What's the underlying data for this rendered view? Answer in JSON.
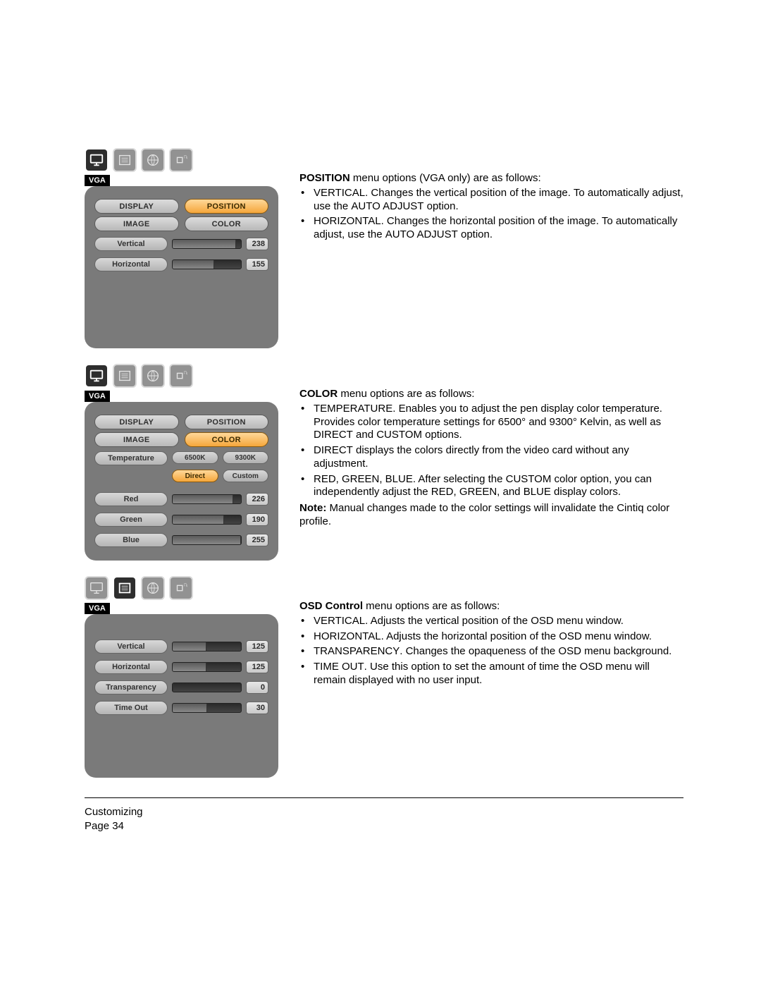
{
  "badge": "VGA",
  "position_section": {
    "intro_strong": "POSITION",
    "intro_rest": " menu options (VGA only) are as follows:",
    "bullets": [
      {
        "lead": "VERTICAL",
        "body": ".  Changes the vertical position of the image. To automatically adjust, use the ",
        "tail_sc": "AUTO ADJUST",
        "tail": " option."
      },
      {
        "lead": "HORIZONTAL",
        "body": ".  Changes the horizontal position of the image. To automatically adjust, use the ",
        "tail_sc": "AUTO ADJUST",
        "tail": " option."
      }
    ],
    "panel": {
      "tabs_top": [
        {
          "label": "DISPLAY",
          "active": false
        },
        {
          "label": "POSITION",
          "active": true
        }
      ],
      "tabs_bot": [
        {
          "label": "IMAGE",
          "active": false
        },
        {
          "label": "COLOR",
          "active": false
        }
      ],
      "sliders": [
        {
          "label": "Vertical",
          "value": 238,
          "max": 255,
          "fill_pct": 93
        },
        {
          "label": "Horizontal",
          "value": 155,
          "max": 255,
          "fill_pct": 61
        }
      ]
    }
  },
  "color_section": {
    "intro_strong": "COLOR",
    "intro_rest": " menu options are as follows:",
    "bullets": [
      {
        "lead": "TEMPERATURE",
        "body": ".  Enables you to adjust the pen display color temperature. Provides color temperature settings for 6500° and 9300° Kelvin, as well as ",
        "tail_sc": "DIRECT",
        "mid": " and ",
        "tail_sc2": "CUSTOM",
        "tail": " options."
      },
      {
        "lead": "DIRECT",
        "body": " displays the colors directly from the video card without any adjustment.",
        "tail": ""
      },
      {
        "lead": "RED, GREEN, BLUE",
        "body": ".  After selecting the ",
        "tail_sc": "CUSTOM",
        "mid": " color option, you can independently adjust the ",
        "tail_sc2": "RED",
        "mid2": ", ",
        "tail_sc3": "GREEN",
        "mid3": ", and ",
        "tail_sc4": "BLUE",
        "tail": " display colors."
      }
    ],
    "note_strong": "Note:",
    "note_rest": " Manual changes made to the color settings will invalidate the Cintiq color profile.",
    "panel": {
      "tabs_top": [
        {
          "label": "DISPLAY",
          "active": false
        },
        {
          "label": "POSITION",
          "active": false
        }
      ],
      "tabs_bot": [
        {
          "label": "IMAGE",
          "active": false
        },
        {
          "label": "COLOR",
          "active": true
        }
      ],
      "temp_label": "Temperature",
      "temp_btns_row1": [
        {
          "label": "6500K",
          "active": false
        },
        {
          "label": "9300K",
          "active": false
        }
      ],
      "temp_btns_row2": [
        {
          "label": "Direct",
          "active": true
        },
        {
          "label": "Custom",
          "active": false
        }
      ],
      "sliders": [
        {
          "label": "Red",
          "value": 226,
          "max": 255,
          "fill_pct": 89
        },
        {
          "label": "Green",
          "value": 190,
          "max": 255,
          "fill_pct": 75
        },
        {
          "label": "Blue",
          "value": 255,
          "max": 255,
          "fill_pct": 100
        }
      ]
    }
  },
  "osd_section": {
    "intro_strong": "OSD Control",
    "intro_rest": " menu options are as follows:",
    "bullets": [
      {
        "lead": "VERTICAL",
        "body": ".  Adjusts the vertical position of the OSD menu window.",
        "tail": ""
      },
      {
        "lead": "HORIZONTAL",
        "body": ".  Adjusts the horizontal position of the OSD menu window.",
        "tail": ""
      },
      {
        "lead": "TRANSPARENCY",
        "body": ".  Changes the opaqueness of the OSD menu background.",
        "tail": ""
      },
      {
        "lead": "TIME OUT",
        "body": ".  Use this option to set the amount of time the OSD menu will remain displayed with no user input.",
        "tail": ""
      }
    ],
    "panel": {
      "sliders": [
        {
          "label": "Vertical",
          "value": 125,
          "max": 255,
          "fill_pct": 49
        },
        {
          "label": "Horizontal",
          "value": 125,
          "max": 255,
          "fill_pct": 49
        },
        {
          "label": "Transparency",
          "value": 0,
          "max": 255,
          "fill_pct": 0
        },
        {
          "label": "Time Out",
          "value": 30,
          "max": 60,
          "fill_pct": 50
        }
      ]
    }
  },
  "footer": {
    "line1": "Customizing",
    "line2": "Page  34"
  },
  "colors": {
    "panel_bg": "#7a7a7a",
    "tab_active_from": "#ffd89a",
    "tab_active_to": "#f5a63a",
    "tab_from": "#dcdcdc",
    "tab_to": "#b8b8b8",
    "track_from": "#2a2a2a",
    "track_to": "#444444",
    "fill_from": "#5a5a5a",
    "fill_to": "#888888"
  }
}
